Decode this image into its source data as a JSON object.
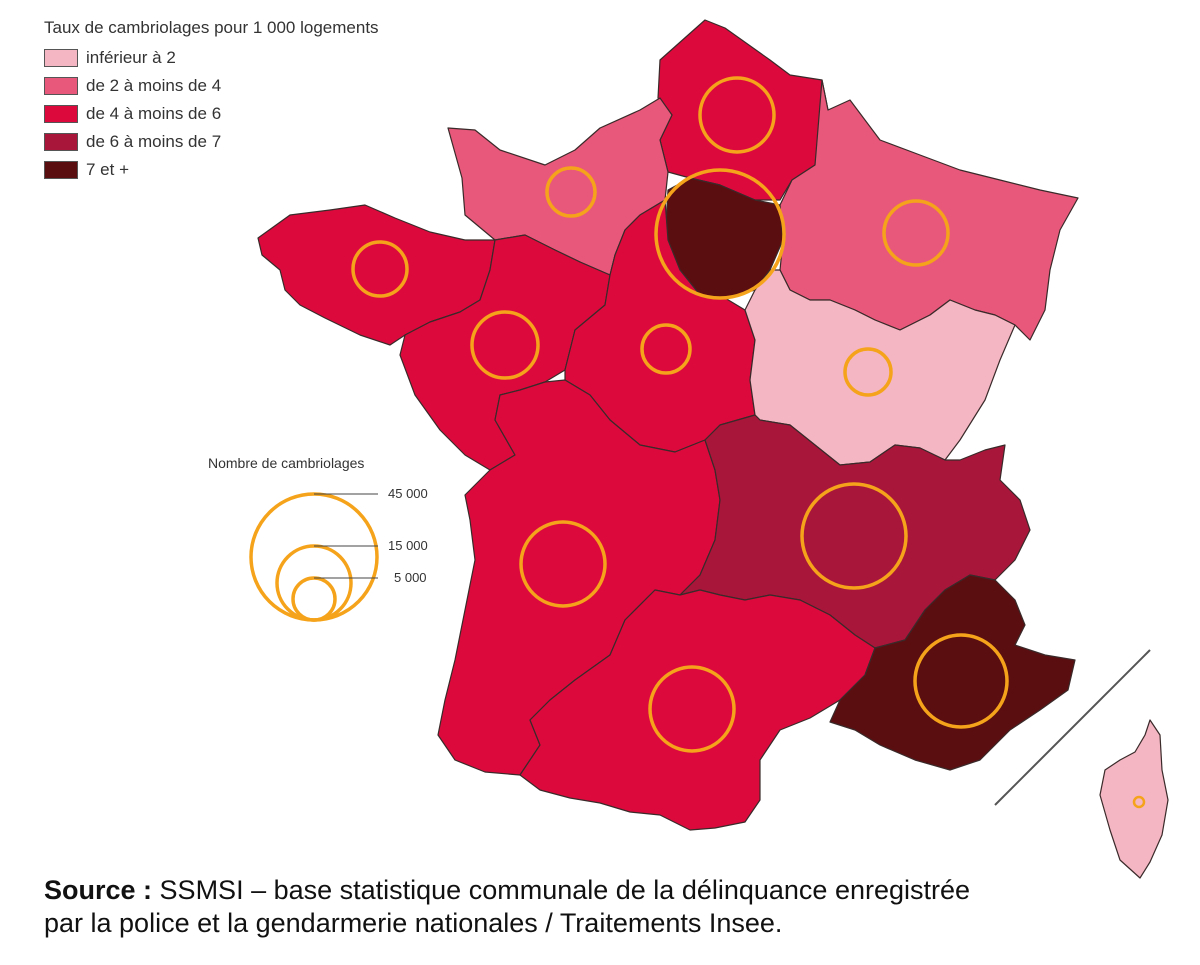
{
  "legend_choropleth": {
    "title": "Taux de cambriolages pour 1 000 logements",
    "classes": [
      {
        "label": "inférieur à 2",
        "color": "#f4b6c2"
      },
      {
        "label": "de 2 à moins de 4",
        "color": "#e8587a"
      },
      {
        "label": "de 4 à moins de 6",
        "color": "#dc0a3c"
      },
      {
        "label": "de 6 à moins de 7",
        "color": "#a8163a"
      },
      {
        "label": "7 et +",
        "color": "#5a0e10"
      }
    ]
  },
  "legend_circles": {
    "title": "Nombre de cambriolages",
    "color": "#f5a31a",
    "items": [
      {
        "label": "45 000",
        "value": 45000
      },
      {
        "label": "15 000",
        "value": 15000
      },
      {
        "label": "5 000",
        "value": 5000
      }
    ]
  },
  "source": {
    "label": "Source :",
    "text": "SSMSI – base statistique communale de la délinquance enregistrée",
    "text_line2": "par la police et la gendarmerie nationales / Traitements Insee."
  },
  "regions": [
    {
      "id": "hauts-de-france",
      "class": 2
    },
    {
      "id": "normandie",
      "class": 1
    },
    {
      "id": "ile-de-france",
      "class": 4
    },
    {
      "id": "grand-est",
      "class": 1
    },
    {
      "id": "bretagne",
      "class": 2
    },
    {
      "id": "pays-de-la-loire",
      "class": 2
    },
    {
      "id": "centre-val-de-loire",
      "class": 2
    },
    {
      "id": "bourgogne-franche-comte",
      "class": 0
    },
    {
      "id": "nouvelle-aquitaine",
      "class": 2
    },
    {
      "id": "auvergne-rhone-alpes",
      "class": 3
    },
    {
      "id": "occitanie",
      "class": 2
    },
    {
      "id": "provence-alpes-cote-dazur",
      "class": 4
    },
    {
      "id": "corse",
      "class": 0
    }
  ]
}
